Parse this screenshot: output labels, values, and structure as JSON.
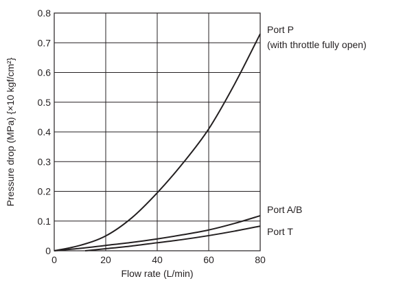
{
  "chart_data": {
    "type": "line",
    "xlabel": "Flow rate (L/min)",
    "ylabel": "Pressure drop (MPa) {×10 kgf/cm²}",
    "xlim": [
      0,
      80
    ],
    "ylim": [
      0,
      0.8
    ],
    "x_ticks": [
      "0",
      "20",
      "40",
      "60",
      "80"
    ],
    "y_ticks": [
      "0",
      "0.1",
      "0.2",
      "0.3",
      "0.4",
      "0.5",
      "0.6",
      "0.7",
      "0.8"
    ],
    "grid": true,
    "series": [
      {
        "name": "Port P",
        "note": "(with throttle fully open)",
        "x": [
          0,
          10,
          20,
          30,
          40,
          50,
          60,
          70,
          80
        ],
        "y": [
          0,
          0.018,
          0.05,
          0.11,
          0.195,
          0.295,
          0.41,
          0.56,
          0.73
        ]
      },
      {
        "name": "Port A/B",
        "x": [
          0,
          10,
          20,
          30,
          40,
          50,
          60,
          70,
          80
        ],
        "y": [
          0,
          0.008,
          0.018,
          0.028,
          0.04,
          0.054,
          0.07,
          0.092,
          0.118
        ]
      },
      {
        "name": "Port T",
        "x": [
          12,
          20,
          30,
          40,
          50,
          60,
          70,
          80
        ],
        "y": [
          0,
          0.007,
          0.016,
          0.027,
          0.038,
          0.051,
          0.066,
          0.083
        ]
      }
    ]
  }
}
